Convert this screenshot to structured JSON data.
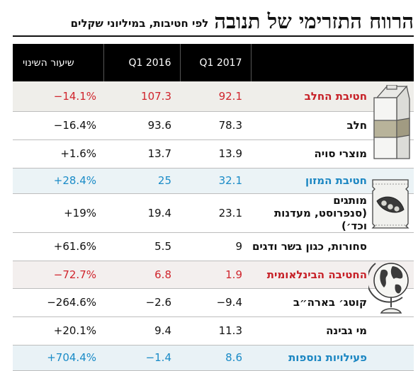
{
  "title": "הרווח התזרימי של תנובה",
  "subtitle": "לפי חטיבות, במיליוני שקלים",
  "headers": {
    "q1_2017": "Q1 2017",
    "q1_2016": "Q1 2016",
    "change": "שיעור השינוי"
  },
  "rows": [
    {
      "label": "חטיבת החלב",
      "q1_2017": "92.1",
      "q1_2016": "107.3",
      "change": "−14.1%",
      "group": true,
      "tone": "red",
      "bg": "#efeeea"
    },
    {
      "label": "חלב",
      "q1_2017": "78.3",
      "q1_2016": "93.6",
      "change": "−16.4%"
    },
    {
      "label": "מוצרי סויה",
      "q1_2017": "13.9",
      "q1_2016": "13.7",
      "change": "+1.6%"
    },
    {
      "label": "חטיבת המזון",
      "q1_2017": "32.1",
      "q1_2016": "25",
      "change": "+28.4%",
      "group": true,
      "tone": "blue",
      "bg": "#ebf3f6"
    },
    {
      "label": "מותגים",
      "label2": "(סנפרוסט, מעדנות וכד׳)",
      "q1_2017": "23.1",
      "q1_2016": "19.4",
      "change": "+19%"
    },
    {
      "label": "סחורות, כגון בשר ודגים",
      "q1_2017": "9",
      "q1_2016": "5.5",
      "change": "+61.6%"
    },
    {
      "label": "החטיבה הבינלאומית",
      "q1_2017": "1.9",
      "q1_2016": "6.8",
      "change": "−72.7%",
      "group": true,
      "tone": "red",
      "bg": "#f3efee"
    },
    {
      "label": "קוטג׳ בארה״ב",
      "q1_2017": "−9.4",
      "q1_2016": "−2.6",
      "change": "−264.6%"
    },
    {
      "label": "מי גבינה",
      "q1_2017": "11.3",
      "q1_2016": "9.4",
      "change": "+20.1%"
    },
    {
      "label": "פעילויות נוספות",
      "q1_2017": "8.6",
      "q1_2016": "−1.4",
      "change": "+704.4%",
      "group": true,
      "tone": "blue",
      "bg": "#e9f2f6"
    }
  ],
  "icons": [
    "milk-carton-icon",
    "snack-bag-icon",
    "globe-icon"
  ],
  "colors": {
    "red": "#d0252d",
    "blue": "#1a8bc7",
    "header_bg": "#000000"
  }
}
